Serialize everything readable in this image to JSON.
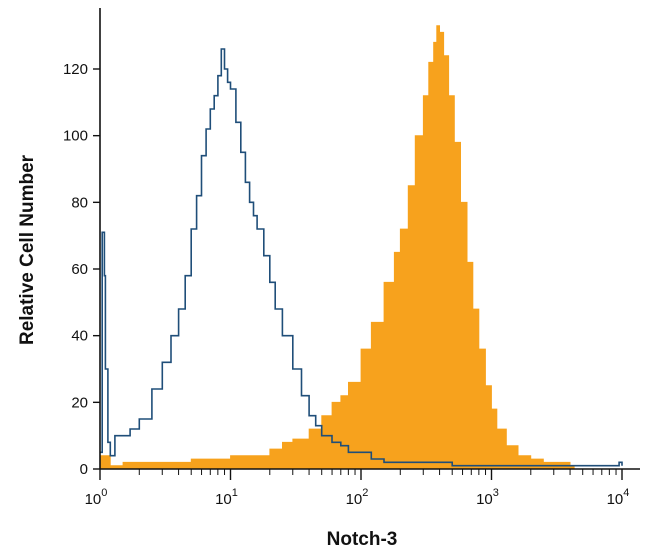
{
  "chart_data": {
    "type": "area",
    "xlabel": "Notch-3",
    "ylabel": "Relative Cell Number",
    "xscale": "log",
    "xlim": [
      1,
      10000
    ],
    "ylim": [
      0,
      135
    ],
    "x_ticks": [
      {
        "value": 1,
        "base": "10",
        "exp": "0"
      },
      {
        "value": 10,
        "base": "10",
        "exp": "1"
      },
      {
        "value": 100,
        "base": "10",
        "exp": "2"
      },
      {
        "value": 1000,
        "base": "10",
        "exp": "3"
      },
      {
        "value": 10000,
        "base": "10",
        "exp": "4"
      }
    ],
    "y_ticks": [
      0,
      20,
      40,
      60,
      80,
      100,
      120
    ],
    "series": [
      {
        "style": "filled",
        "color": "#F7A21D",
        "points": [
          [
            1,
            4
          ],
          [
            1.2,
            1
          ],
          [
            1.5,
            2
          ],
          [
            2,
            2
          ],
          [
            3,
            2
          ],
          [
            4,
            2
          ],
          [
            5,
            3
          ],
          [
            7,
            3
          ],
          [
            10,
            4
          ],
          [
            14,
            4
          ],
          [
            20,
            6
          ],
          [
            25,
            8
          ],
          [
            30,
            9
          ],
          [
            40,
            12
          ],
          [
            50,
            16
          ],
          [
            60,
            20
          ],
          [
            70,
            22
          ],
          [
            80,
            26
          ],
          [
            100,
            36
          ],
          [
            120,
            44
          ],
          [
            150,
            56
          ],
          [
            180,
            65
          ],
          [
            200,
            72
          ],
          [
            230,
            85
          ],
          [
            260,
            100
          ],
          [
            300,
            112
          ],
          [
            330,
            122
          ],
          [
            360,
            128
          ],
          [
            380,
            133
          ],
          [
            400,
            131
          ],
          [
            430,
            124
          ],
          [
            470,
            112
          ],
          [
            520,
            98
          ],
          [
            580,
            80
          ],
          [
            650,
            62
          ],
          [
            720,
            48
          ],
          [
            800,
            36
          ],
          [
            900,
            25
          ],
          [
            1000,
            18
          ],
          [
            1100,
            12
          ],
          [
            1300,
            7
          ],
          [
            1600,
            4
          ],
          [
            2000,
            3
          ],
          [
            2500,
            2
          ],
          [
            3000,
            2
          ],
          [
            4000,
            1
          ],
          [
            4300,
            0
          ]
        ]
      },
      {
        "style": "outline",
        "color": "#1F4E79",
        "points": [
          [
            1,
            5
          ],
          [
            1.04,
            71
          ],
          [
            1.08,
            58
          ],
          [
            1.1,
            30
          ],
          [
            1.15,
            8
          ],
          [
            1.2,
            4
          ],
          [
            1.3,
            10
          ],
          [
            1.5,
            10
          ],
          [
            1.7,
            12
          ],
          [
            2,
            15
          ],
          [
            2.5,
            24
          ],
          [
            3,
            32
          ],
          [
            3.5,
            40
          ],
          [
            4,
            48
          ],
          [
            4.5,
            58
          ],
          [
            5,
            72
          ],
          [
            5.5,
            82
          ],
          [
            6,
            94
          ],
          [
            6.5,
            102
          ],
          [
            7,
            108
          ],
          [
            7.5,
            112
          ],
          [
            8,
            118
          ],
          [
            8.5,
            126
          ],
          [
            9,
            120
          ],
          [
            9.5,
            116
          ],
          [
            10,
            114
          ],
          [
            11,
            104
          ],
          [
            12,
            95
          ],
          [
            13,
            86
          ],
          [
            14,
            80
          ],
          [
            15,
            76
          ],
          [
            16,
            72
          ],
          [
            18,
            64
          ],
          [
            20,
            56
          ],
          [
            22,
            48
          ],
          [
            25,
            40
          ],
          [
            30,
            30
          ],
          [
            35,
            22
          ],
          [
            40,
            16
          ],
          [
            45,
            13
          ],
          [
            50,
            10
          ],
          [
            60,
            8
          ],
          [
            70,
            7
          ],
          [
            80,
            5
          ],
          [
            100,
            5
          ],
          [
            120,
            3
          ],
          [
            150,
            2
          ],
          [
            200,
            2
          ],
          [
            300,
            2
          ],
          [
            400,
            2
          ],
          [
            500,
            1
          ],
          [
            700,
            1
          ],
          [
            1000,
            1
          ],
          [
            2000,
            1
          ],
          [
            5000,
            1
          ],
          [
            9000,
            1
          ],
          [
            9500,
            2
          ],
          [
            10000,
            1
          ]
        ]
      }
    ]
  }
}
